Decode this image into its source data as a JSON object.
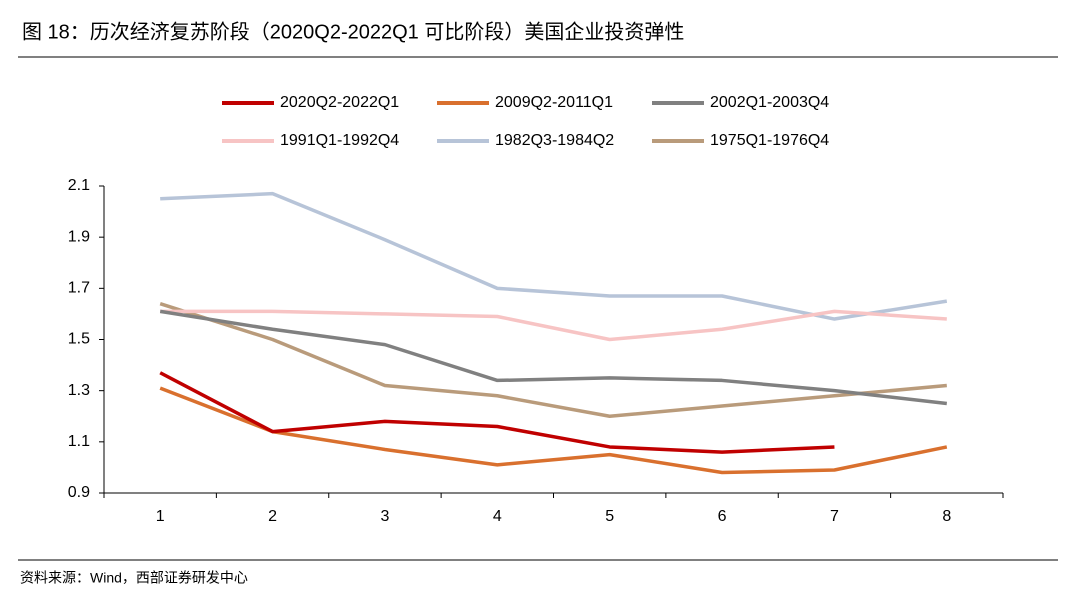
{
  "chart_data": {
    "type": "line",
    "title": "图 18：历次经济复苏阶段（2020Q2-2022Q1 可比阶段）美国企业投资弹性",
    "source": "资料来源：Wind，西部证券研发中心",
    "categories": [
      "1",
      "2",
      "3",
      "4",
      "5",
      "6",
      "7",
      "8"
    ],
    "ylim": [
      0.9,
      2.1
    ],
    "yticks": [
      0.9,
      1.1,
      1.3,
      1.5,
      1.7,
      1.9,
      2.1
    ],
    "grid": false,
    "legend": "top",
    "series": [
      {
        "name": "2020Q2-2022Q1",
        "color": "#c00000",
        "values": [
          1.37,
          1.14,
          1.18,
          1.16,
          1.08,
          1.06,
          1.08,
          null
        ]
      },
      {
        "name": "2009Q2-2011Q1",
        "color": "#d9702e",
        "values": [
          1.31,
          1.14,
          1.07,
          1.01,
          1.05,
          0.98,
          0.99,
          1.08
        ]
      },
      {
        "name": "2002Q1-2003Q4",
        "color": "#808080",
        "values": [
          1.61,
          1.54,
          1.48,
          1.34,
          1.35,
          1.34,
          1.3,
          1.25
        ]
      },
      {
        "name": "1991Q1-1992Q4",
        "color": "#f7c4c4",
        "values": [
          1.61,
          1.61,
          1.6,
          1.59,
          1.5,
          1.54,
          1.61,
          1.58
        ]
      },
      {
        "name": "1982Q3-1984Q2",
        "color": "#b7c4d8",
        "values": [
          2.05,
          2.07,
          1.89,
          1.7,
          1.67,
          1.67,
          1.58,
          1.65
        ]
      },
      {
        "name": "1975Q1-1976Q4",
        "color": "#b99b7b",
        "values": [
          1.64,
          1.5,
          1.32,
          1.28,
          1.2,
          1.24,
          1.28,
          1.32
        ]
      }
    ]
  }
}
